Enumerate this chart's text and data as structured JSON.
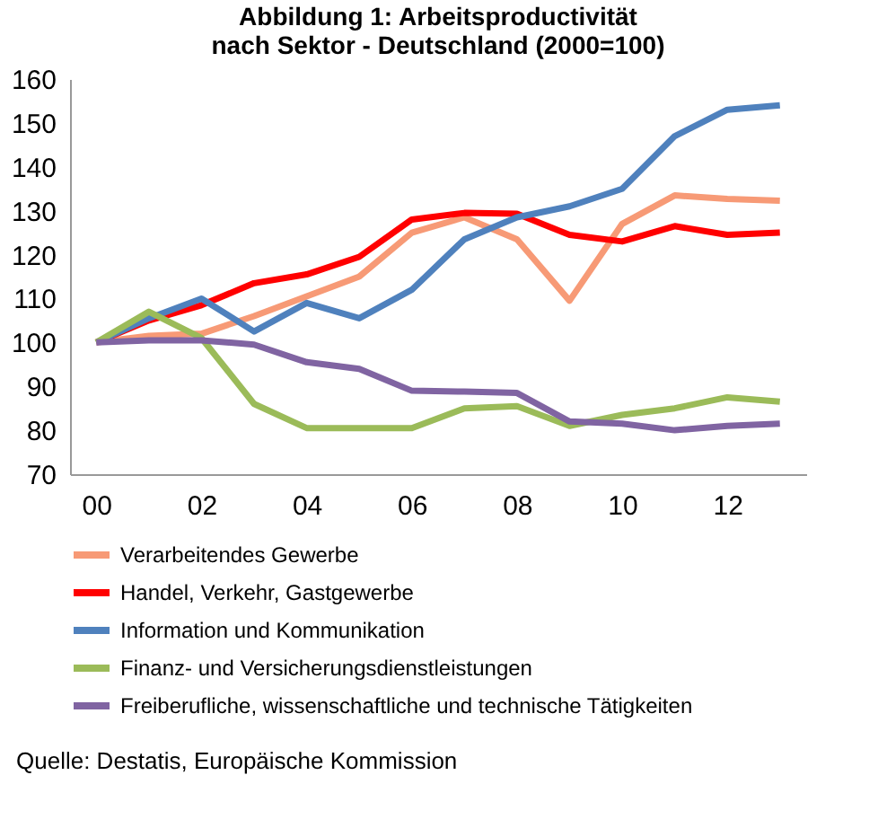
{
  "chart_data": {
    "type": "line",
    "title": "Abbildung 1: Arbeitsproductivität nach Sektor - Deutschland (2000=100)",
    "x": [
      0,
      1,
      2,
      3,
      4,
      5,
      6,
      7,
      8,
      9,
      10,
      11,
      12,
      13
    ],
    "xlim": [
      -0.5,
      13.5
    ],
    "xticks": [
      {
        "value": 0,
        "label": "00"
      },
      {
        "value": 2,
        "label": "02"
      },
      {
        "value": 4,
        "label": "04"
      },
      {
        "value": 6,
        "label": "06"
      },
      {
        "value": 8,
        "label": "08"
      },
      10,
      12
    ],
    "ylim": [
      70,
      160
    ],
    "yticks": [
      70,
      80,
      90,
      100,
      110,
      120,
      130,
      140,
      150,
      160
    ],
    "grid": false,
    "legend": "bottom",
    "line_style": "solid",
    "series": [
      {
        "name": "Verarbeitendes Gewerbe",
        "color": "#f79a76",
        "values": [
          100,
          101.5,
          102,
          106,
          110.5,
          115,
          125,
          128.5,
          123.5,
          109.5,
          127,
          133.5,
          132.7,
          132.3
        ]
      },
      {
        "name": "Handel, Verkehr, Gastgewerbe",
        "color": "#ff0000",
        "values": [
          100,
          105,
          108.5,
          113.5,
          115.5,
          119.5,
          128,
          129.5,
          129.3,
          124.5,
          123,
          126.5,
          124.5,
          125
        ]
      },
      {
        "name": "Information und Kommunikation",
        "color": "#4f81bd",
        "values": [
          100,
          105.5,
          110,
          102.5,
          109,
          105.5,
          112,
          123.5,
          128.5,
          131,
          135,
          147,
          153,
          154
        ]
      },
      {
        "name": "Finanz- und Versicherungsdienstleistungen",
        "color": "#9bbb59",
        "values": [
          100,
          107,
          101,
          86,
          80.5,
          80.5,
          80.5,
          85,
          85.5,
          81,
          83.5,
          85,
          87.5,
          86.5
        ]
      },
      {
        "name": "Freiberufliche, wissenschaftliche und technische Tätigkeiten",
        "color": "#8064a2",
        "values": [
          100,
          100.5,
          100.5,
          99.5,
          95.5,
          94,
          89,
          88.8,
          88.5,
          82,
          81.5,
          80,
          81,
          81.5
        ]
      }
    ],
    "annotations": [
      "Quelle: Destatis, Europäische Kommission"
    ]
  }
}
